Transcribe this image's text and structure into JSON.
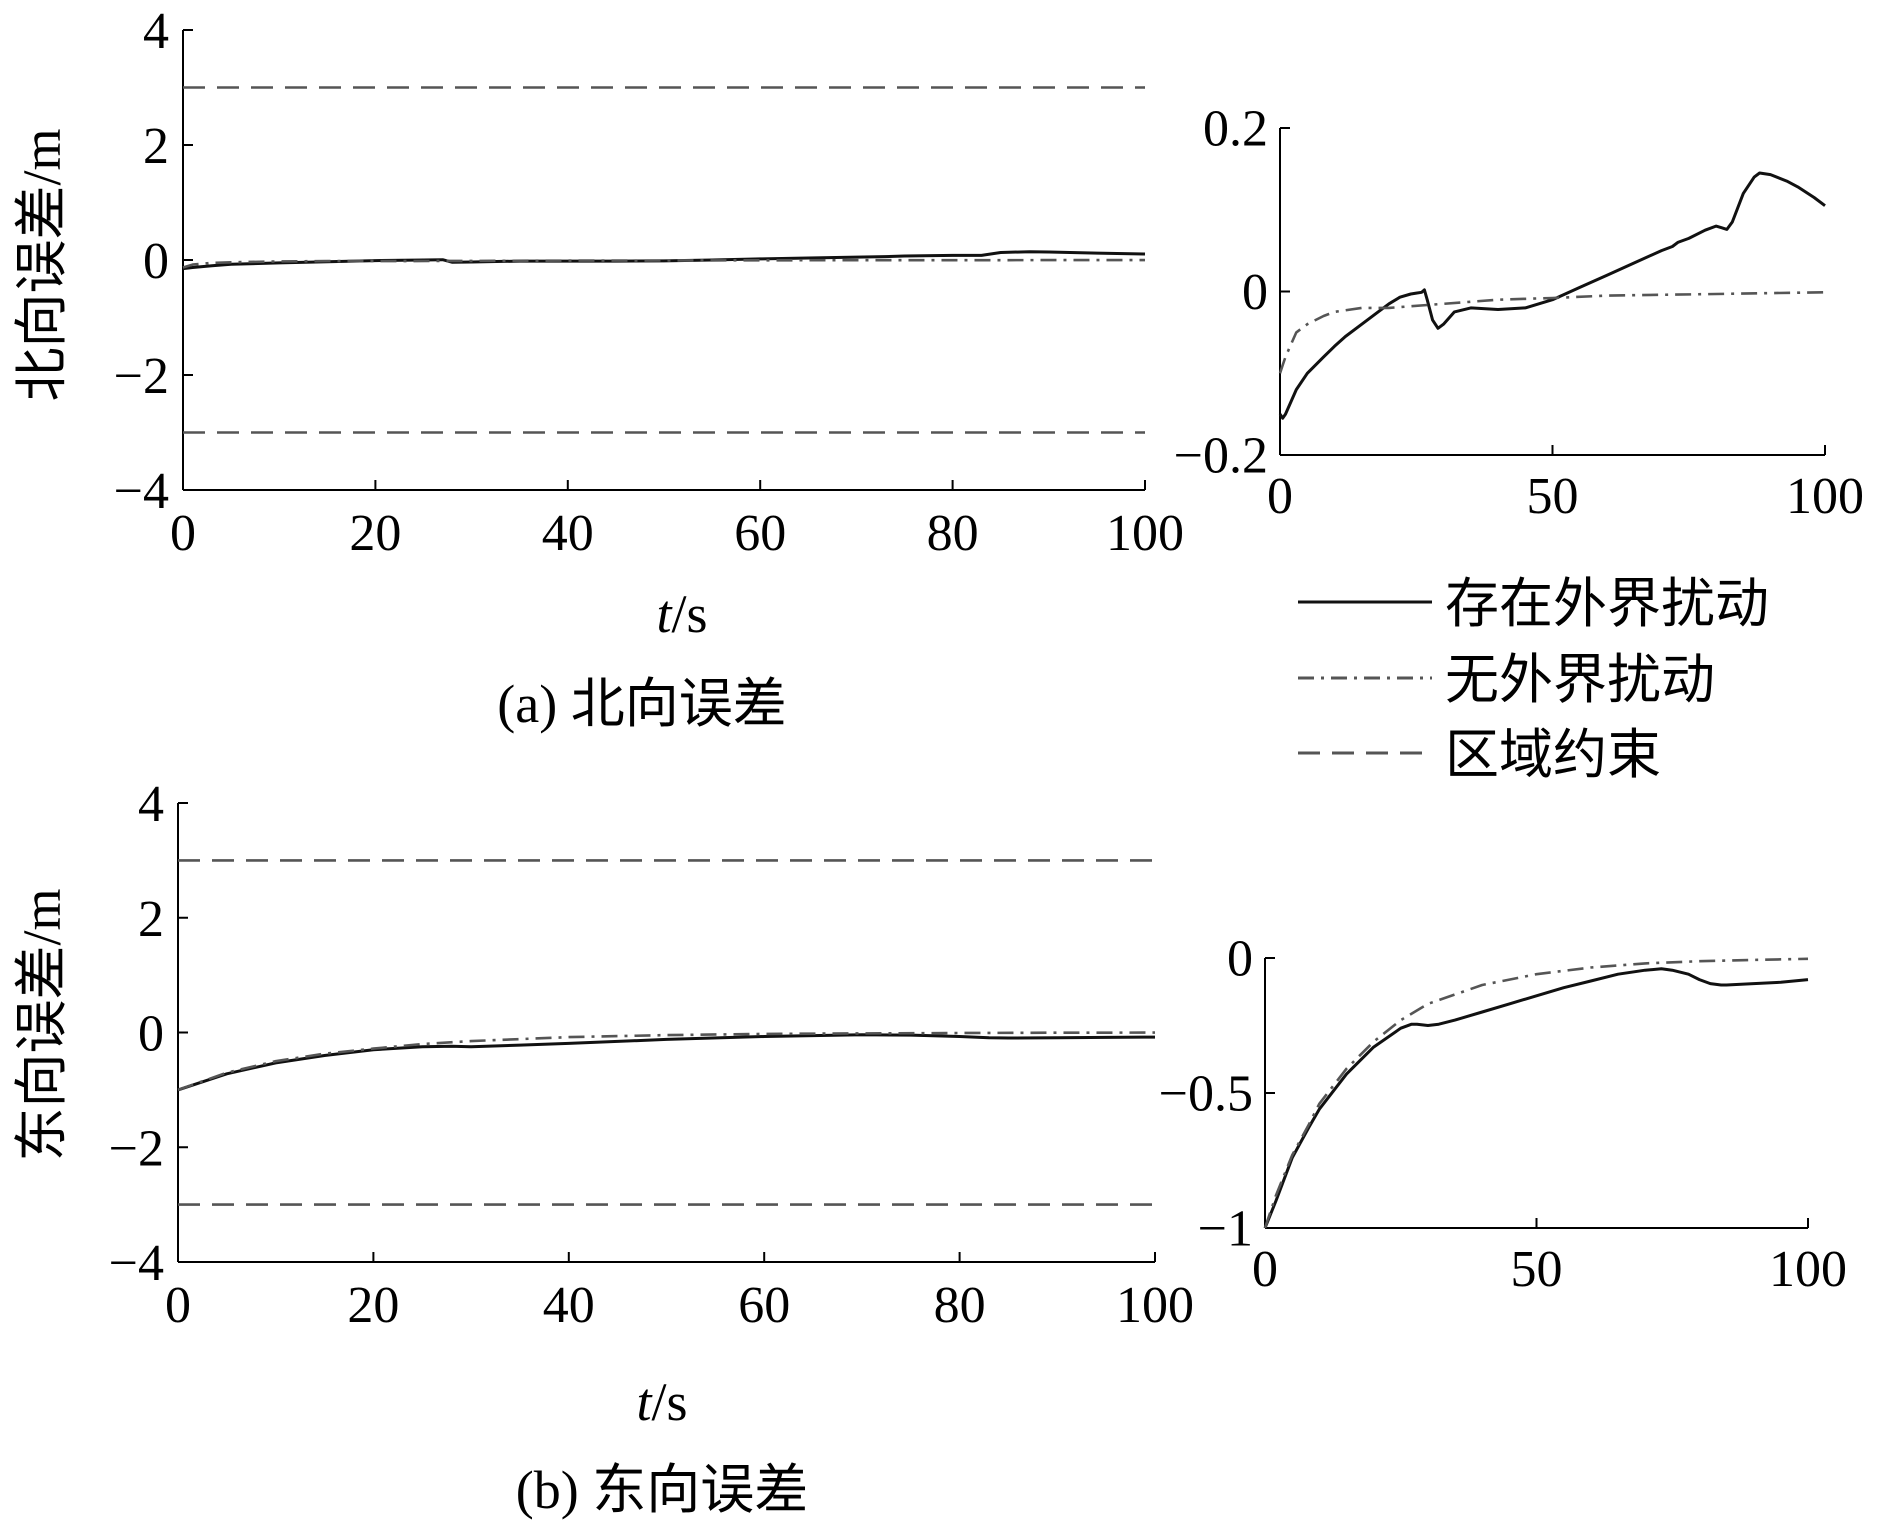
{
  "legend": {
    "items": [
      {
        "label": "存在外界扰动",
        "style": "solid"
      },
      {
        "label": "无外界扰动",
        "style": "dashdot"
      },
      {
        "label": "区域约束",
        "style": "dashed"
      }
    ]
  },
  "colors": {
    "axis": "#000000",
    "disturbed": "#111111",
    "undisturbed": "#555555",
    "constraint": "#555555"
  },
  "chart_data": [
    {
      "id": "north-main",
      "type": "line",
      "caption": "(a) 北向误差",
      "xlabel_italic": "t",
      "xlabel_unit": "/s",
      "ylabel": "北向误差/m",
      "xlim": [
        0,
        100
      ],
      "ylim": [
        -4,
        4
      ],
      "xticks": [
        "0",
        "20",
        "40",
        "60",
        "80",
        "100"
      ],
      "yticks": [
        "−4",
        "−2",
        "0",
        "2",
        "4"
      ],
      "series": [
        {
          "name": "存在外界扰动",
          "style": "solid",
          "x": [
            0,
            1,
            3,
            5,
            10,
            15,
            20,
            25,
            27,
            28,
            30,
            35,
            40,
            45,
            50,
            55,
            60,
            65,
            70,
            73,
            75,
            80,
            83,
            85,
            88,
            90,
            95,
            100
          ],
          "y": [
            -0.15,
            -0.13,
            -0.1,
            -0.075,
            -0.05,
            -0.03,
            -0.01,
            0,
            0.005,
            -0.04,
            -0.035,
            -0.02,
            -0.02,
            -0.02,
            -0.015,
            0,
            0.02,
            0.035,
            0.05,
            0.06,
            0.07,
            0.08,
            0.08,
            0.13,
            0.145,
            0.14,
            0.12,
            0.105
          ]
        },
        {
          "name": "无外界扰动",
          "style": "dashdot",
          "x": [
            0,
            1,
            3,
            5,
            10,
            15,
            20,
            30,
            40,
            50,
            60,
            70,
            80,
            90,
            100
          ],
          "y": [
            -0.13,
            -0.08,
            -0.05,
            -0.04,
            -0.025,
            -0.02,
            -0.02,
            -0.015,
            -0.01,
            -0.008,
            -0.005,
            -0.004,
            -0.003,
            -0.002,
            -0.001
          ]
        },
        {
          "name": "区域约束",
          "style": "dashed",
          "x": [
            0,
            100
          ],
          "y": [
            3,
            3
          ]
        },
        {
          "name": "区域约束",
          "style": "dashed",
          "x": [
            0,
            100
          ],
          "y": [
            -3,
            -3
          ]
        }
      ]
    },
    {
      "id": "north-zoom",
      "type": "line",
      "xlim": [
        0,
        100
      ],
      "ylim": [
        -0.2,
        0.2
      ],
      "xticks": [
        "0",
        "50",
        "100"
      ],
      "yticks": [
        "−0.2",
        "0",
        "0.2"
      ],
      "series": [
        {
          "name": "存在外界扰动",
          "style": "solid",
          "x": [
            0,
            0.5,
            1,
            2,
            3,
            5,
            8,
            10,
            12,
            15,
            18,
            20,
            22,
            24,
            25,
            26,
            26.5,
            27,
            28,
            29,
            30,
            32,
            35,
            40,
            45,
            50,
            55,
            60,
            65,
            70,
            72,
            73,
            75,
            78,
            80,
            81,
            82,
            83,
            85,
            87,
            88,
            90,
            93,
            95,
            98,
            100
          ],
          "y": [
            -0.15,
            -0.155,
            -0.15,
            -0.135,
            -0.12,
            -0.1,
            -0.08,
            -0.067,
            -0.055,
            -0.04,
            -0.025,
            -0.015,
            -0.007,
            -0.003,
            -0.002,
            -0.001,
            0.002,
            -0.01,
            -0.035,
            -0.045,
            -0.04,
            -0.025,
            -0.02,
            -0.022,
            -0.02,
            -0.01,
            0.005,
            0.02,
            0.035,
            0.05,
            0.055,
            0.06,
            0.065,
            0.075,
            0.08,
            0.078,
            0.076,
            0.085,
            0.12,
            0.14,
            0.145,
            0.143,
            0.135,
            0.128,
            0.115,
            0.105
          ]
        },
        {
          "name": "无外界扰动",
          "style": "dashdot",
          "x": [
            0,
            0.5,
            1,
            2,
            3,
            5,
            8,
            10,
            15,
            20,
            30,
            40,
            50,
            60,
            70,
            80,
            90,
            100
          ],
          "y": [
            -0.1,
            -0.09,
            -0.08,
            -0.065,
            -0.05,
            -0.04,
            -0.03,
            -0.025,
            -0.02,
            -0.02,
            -0.015,
            -0.01,
            -0.008,
            -0.005,
            -0.004,
            -0.003,
            -0.002,
            -0.001
          ]
        }
      ]
    },
    {
      "id": "east-main",
      "type": "line",
      "caption": "(b) 东向误差",
      "xlabel_italic": "t",
      "xlabel_unit": "/s",
      "ylabel": "东向误差/m",
      "xlim": [
        0,
        100
      ],
      "ylim": [
        -4,
        4
      ],
      "xticks": [
        "0",
        "20",
        "40",
        "60",
        "80",
        "100"
      ],
      "yticks": [
        "−4",
        "−2",
        "0",
        "2",
        "4"
      ],
      "series": [
        {
          "name": "存在外界扰动",
          "style": "solid",
          "x": [
            0,
            5,
            10,
            15,
            20,
            25,
            28,
            30,
            35,
            40,
            50,
            60,
            70,
            75,
            80,
            83,
            85,
            90,
            95,
            100
          ],
          "y": [
            -1,
            -0.72,
            -0.53,
            -0.4,
            -0.3,
            -0.25,
            -0.24,
            -0.25,
            -0.22,
            -0.19,
            -0.12,
            -0.07,
            -0.04,
            -0.045,
            -0.07,
            -0.09,
            -0.095,
            -0.09,
            -0.085,
            -0.08
          ]
        },
        {
          "name": "无外界扰动",
          "style": "dashdot",
          "x": [
            0,
            5,
            10,
            15,
            20,
            25,
            30,
            40,
            50,
            60,
            70,
            80,
            90,
            100
          ],
          "y": [
            -1,
            -0.7,
            -0.5,
            -0.37,
            -0.28,
            -0.2,
            -0.15,
            -0.08,
            -0.045,
            -0.025,
            -0.015,
            -0.008,
            -0.004,
            -0.002
          ]
        },
        {
          "name": "区域约束",
          "style": "dashed",
          "x": [
            0,
            100
          ],
          "y": [
            3,
            3
          ]
        },
        {
          "name": "区域约束",
          "style": "dashed",
          "x": [
            0,
            100
          ],
          "y": [
            -3,
            -3
          ]
        }
      ]
    },
    {
      "id": "east-zoom",
      "type": "line",
      "xlim": [
        0,
        100
      ],
      "ylim": [
        -1,
        0
      ],
      "xticks": [
        "0",
        "50",
        "100"
      ],
      "yticks": [
        "−1",
        "−0.5",
        "0"
      ],
      "series": [
        {
          "name": "存在外界扰动",
          "style": "solid",
          "x": [
            0,
            2,
            5,
            8,
            10,
            15,
            20,
            25,
            27,
            28,
            30,
            32,
            35,
            40,
            45,
            50,
            55,
            60,
            65,
            70,
            73,
            75,
            78,
            80,
            82,
            84,
            85,
            90,
            95,
            100
          ],
          "y": [
            -1,
            -0.9,
            -0.74,
            -0.63,
            -0.56,
            -0.43,
            -0.33,
            -0.26,
            -0.245,
            -0.245,
            -0.25,
            -0.245,
            -0.23,
            -0.2,
            -0.17,
            -0.14,
            -0.11,
            -0.085,
            -0.06,
            -0.045,
            -0.04,
            -0.045,
            -0.06,
            -0.08,
            -0.095,
            -0.1,
            -0.1,
            -0.095,
            -0.09,
            -0.08
          ]
        },
        {
          "name": "无外界扰动",
          "style": "dashdot",
          "x": [
            0,
            2,
            5,
            8,
            10,
            15,
            20,
            25,
            30,
            40,
            50,
            60,
            70,
            80,
            90,
            100
          ],
          "y": [
            -1,
            -0.88,
            -0.73,
            -0.62,
            -0.54,
            -0.41,
            -0.31,
            -0.23,
            -0.17,
            -0.1,
            -0.06,
            -0.035,
            -0.02,
            -0.012,
            -0.007,
            -0.003
          ]
        }
      ]
    }
  ]
}
